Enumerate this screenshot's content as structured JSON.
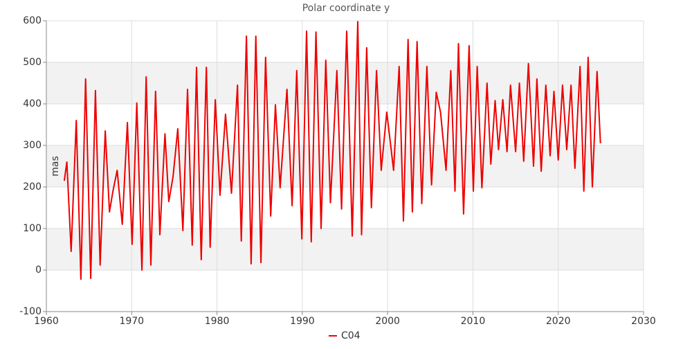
{
  "chart_data": {
    "type": "line",
    "title": "Polar coordinate y",
    "ylabel": "mas",
    "xlim": [
      1960,
      2030
    ],
    "xticks": [
      1960,
      1970,
      1980,
      1990,
      2000,
      2010,
      2020,
      2030
    ],
    "ylim": [
      -100,
      600
    ],
    "yticks": [
      -100,
      0,
      100,
      200,
      300,
      400,
      500,
      600
    ],
    "grid": true,
    "band_color": "#f2f2f2",
    "legend": "bottom",
    "series": [
      {
        "name": "C04",
        "color": "#ee0000",
        "x": [
          1962.1,
          1962.4,
          1962.9,
          1963.5,
          1964.05,
          1964.6,
          1965.2,
          1965.75,
          1966.3,
          1966.9,
          1967.4,
          1967.8,
          1968.3,
          1968.9,
          1969.5,
          1970.05,
          1970.6,
          1971.2,
          1971.7,
          1972.25,
          1972.8,
          1973.3,
          1973.9,
          1974.35,
          1974.85,
          1975.4,
          1976.0,
          1976.55,
          1977.1,
          1977.6,
          1978.15,
          1978.75,
          1979.2,
          1979.8,
          1980.35,
          1981.0,
          1981.7,
          1982.4,
          1982.85,
          1983.45,
          1984.0,
          1984.55,
          1985.15,
          1985.7,
          1986.3,
          1986.85,
          1987.4,
          1988.2,
          1988.8,
          1989.35,
          1989.95,
          1990.5,
          1991.05,
          1991.6,
          1992.2,
          1992.75,
          1993.3,
          1994.05,
          1994.6,
          1995.2,
          1995.85,
          1996.5,
          1996.95,
          1997.55,
          1998.1,
          1998.7,
          1999.25,
          1999.9,
          2000.7,
          2001.35,
          2001.85,
          2002.4,
          2002.9,
          2003.45,
          2004.0,
          2004.6,
          2005.15,
          2005.7,
          2006.2,
          2006.85,
          2007.4,
          2007.9,
          2008.3,
          2008.9,
          2009.55,
          2010.05,
          2010.5,
          2011.05,
          2011.65,
          2012.1,
          2012.6,
          2013.0,
          2013.5,
          2014.0,
          2014.4,
          2015.0,
          2015.45,
          2015.95,
          2016.5,
          2017.1,
          2017.5,
          2018.0,
          2018.55,
          2019.05,
          2019.5,
          2020.0,
          2020.5,
          2021.0,
          2021.5,
          2021.95,
          2022.55,
          2023.0,
          2023.5,
          2024.0,
          2024.55,
          2024.95
        ],
        "values": [
          215,
          260,
          45,
          360,
          -22,
          460,
          -20,
          432,
          12,
          335,
          140,
          190,
          240,
          110,
          355,
          62,
          402,
          0,
          465,
          12,
          430,
          85,
          328,
          165,
          225,
          340,
          95,
          435,
          60,
          488,
          25,
          488,
          55,
          410,
          180,
          375,
          185,
          445,
          70,
          563,
          15,
          563,
          18,
          512,
          130,
          398,
          198,
          435,
          155,
          480,
          75,
          575,
          68,
          573,
          100,
          505,
          162,
          480,
          147,
          575,
          82,
          598,
          85,
          535,
          150,
          480,
          240,
          380,
          240,
          490,
          118,
          555,
          140,
          550,
          160,
          490,
          205,
          428,
          380,
          240,
          480,
          190,
          545,
          135,
          540,
          190,
          490,
          198,
          450,
          255,
          408,
          290,
          410,
          285,
          445,
          285,
          450,
          262,
          497,
          250,
          460,
          238,
          445,
          275,
          430,
          265,
          445,
          290,
          445,
          245,
          490,
          190,
          512,
          200,
          478,
          305
        ]
      }
    ]
  }
}
